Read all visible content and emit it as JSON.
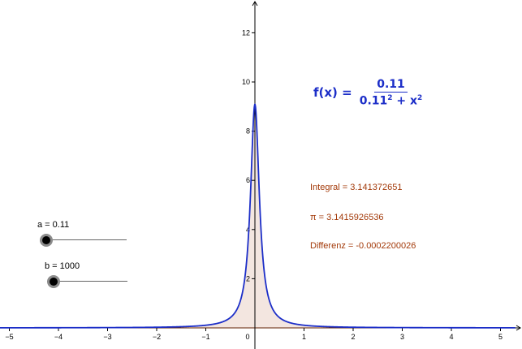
{
  "formula": {
    "lhs": "f(x) =",
    "numerator": "0.11",
    "denominator_base": "0.11",
    "denominator_exp": "2",
    "denominator_plus": " + x",
    "denominator_x_exp": "2"
  },
  "info": {
    "integral": "Integral = 3.141372651",
    "pi": "π = 3.1415926536",
    "difference": "Differenz = -0.0002200026"
  },
  "sliders": {
    "a": {
      "label": "a = 0.11",
      "fraction": 0.0
    },
    "b": {
      "label": "b = 1000",
      "fraction": 0.08
    }
  },
  "chart_data": {
    "type": "area",
    "function": "a / (a^2 + x^2)",
    "parameters": {
      "a": 0.11
    },
    "xlim": [
      -5.3,
      5.3
    ],
    "ylim": [
      -0.15,
      13.2
    ],
    "x_ticks": [
      -5,
      -4,
      -3,
      -2,
      -1,
      0,
      1,
      2,
      3,
      4,
      5
    ],
    "x_tick_labels": [
      "−5",
      "−4",
      "−3",
      "−2",
      "−1",
      "0",
      "1",
      "2",
      "3",
      "4",
      "5"
    ],
    "y_ticks": [
      2,
      4,
      6,
      8,
      10,
      12
    ],
    "y_tick_labels": [
      "2",
      "4",
      "6",
      "8",
      "10",
      "12"
    ],
    "colors": {
      "curve": "#1c2ec8",
      "fill": "#f3e6e0",
      "axis": "#000000",
      "baseline": "#a33a0a"
    }
  }
}
